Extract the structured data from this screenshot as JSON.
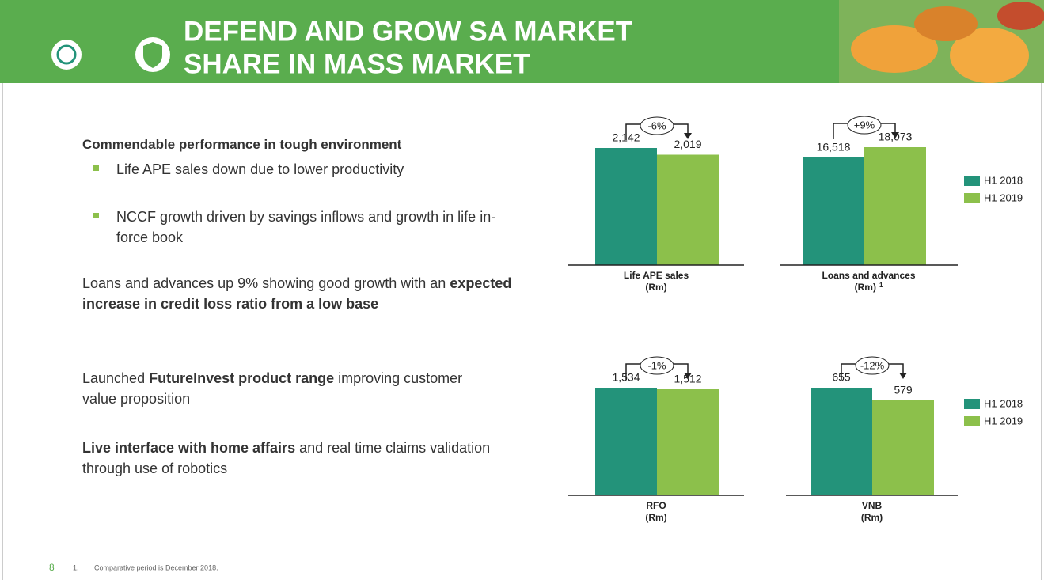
{
  "header": {
    "title_lines": [
      "DEFEND AND GROW SA MARKET",
      "SHARE IN MASS MARKET"
    ]
  },
  "content": {
    "heading": "Commendable performance in tough environment",
    "bullets": [
      "Life APE sales down due to lower productivity",
      "NCCF growth driven by savings inflows and growth in life in-force book"
    ],
    "paragraphs": [
      [
        {
          "text": "Loans and advances up 9% showing good growth with an ",
          "bold": false
        },
        {
          "text": "expected increase in credit loss ratio from a low base",
          "bold": true
        }
      ],
      [
        {
          "text": "Launched ",
          "bold": false
        },
        {
          "text": "FutureInvest product range",
          "bold": true
        },
        {
          "text": " improving customer value proposition",
          "bold": false
        }
      ],
      [
        {
          "text": "Live interface with home affairs",
          "bold": true
        },
        {
          "text": " and real time claims validation through use of robotics",
          "bold": false
        }
      ]
    ]
  },
  "footer": {
    "page_number": "8",
    "footnote_number": "1.",
    "footnote": "Comparative period is December 2018."
  },
  "chart_data": [
    {
      "type": "bar",
      "title": "Life APE sales",
      "subtitle": "(Rm)",
      "annotation": "-6%",
      "series": [
        {
          "name": "H1 2018",
          "color": "#23937a",
          "values": [
            2142
          ],
          "value_labels": [
            "2,142"
          ]
        },
        {
          "name": "H1 2019",
          "color": "#8cc04b",
          "values": [
            2019
          ],
          "value_labels": [
            "2,019"
          ]
        }
      ]
    },
    {
      "type": "bar",
      "title": "Loans and advances",
      "subtitle": "(Rm)",
      "footnote_ref": "1",
      "annotation": "+9%",
      "series": [
        {
          "name": "H1 2018",
          "color": "#23937a",
          "values": [
            16518
          ],
          "value_labels": [
            "16,518"
          ]
        },
        {
          "name": "H1 2019",
          "color": "#8cc04b",
          "values": [
            18073
          ],
          "value_labels": [
            "18,073"
          ]
        }
      ]
    },
    {
      "type": "bar",
      "title": "RFO",
      "subtitle": "(Rm)",
      "annotation": "-1%",
      "series": [
        {
          "name": "H1 2018",
          "color": "#23937a",
          "values": [
            1534
          ],
          "value_labels": [
            "1,534"
          ]
        },
        {
          "name": "H1 2019",
          "color": "#8cc04b",
          "values": [
            1512
          ],
          "value_labels": [
            "1,512"
          ]
        }
      ]
    },
    {
      "type": "bar",
      "title": "VNB",
      "subtitle": "(Rm)",
      "annotation": "-12%",
      "series": [
        {
          "name": "H1 2018",
          "color": "#23937a",
          "values": [
            655
          ],
          "value_labels": [
            "655"
          ]
        },
        {
          "name": "H1 2019",
          "color": "#8cc04b",
          "values": [
            579
          ],
          "value_labels": [
            "579"
          ]
        }
      ]
    }
  ]
}
